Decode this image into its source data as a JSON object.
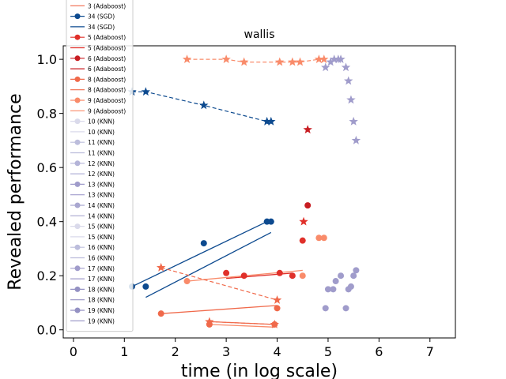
{
  "chart_data": {
    "type": "scatter",
    "title": "wallis",
    "xlabel": "time (in log scale)",
    "ylabel": "Revealed performance",
    "xlim": [
      -0.2,
      7.5
    ],
    "ylim": [
      -0.03,
      1.05
    ],
    "xticks": [
      0,
      1,
      2,
      3,
      4,
      5,
      6,
      7
    ],
    "yticks": [
      0.0,
      0.2,
      0.4,
      0.6,
      0.8,
      1.0
    ],
    "xtick_labels": [
      "0",
      "1",
      "2",
      "3",
      "4",
      "5",
      "6",
      "7"
    ],
    "ytick_labels": [
      "0.0",
      "0.2",
      "0.4",
      "0.6",
      "0.8",
      "1.0"
    ],
    "legend_position": "upper-left",
    "legend": [
      {
        "label": "3 (Adaboost)",
        "kind": "marker",
        "color": "#f0694a"
      },
      {
        "label": "3 (Adaboost)",
        "kind": "line",
        "color": "#f0694a"
      },
      {
        "label": "34 (SGD)",
        "kind": "marker",
        "color": "#0d4a8f"
      },
      {
        "label": "34 (SGD)",
        "kind": "line",
        "color": "#0d4a8f"
      },
      {
        "label": "5 (Adaboost)",
        "kind": "marker",
        "color": "#e0302a"
      },
      {
        "label": "5 (Adaboost)",
        "kind": "line",
        "color": "#e0302a"
      },
      {
        "label": "6 (Adaboost)",
        "kind": "marker",
        "color": "#c81d22"
      },
      {
        "label": "6 (Adaboost)",
        "kind": "line",
        "color": "#c81d22"
      },
      {
        "label": "8 (Adaboost)",
        "kind": "marker",
        "color": "#f0694a"
      },
      {
        "label": "8 (Adaboost)",
        "kind": "line",
        "color": "#f0694a"
      },
      {
        "label": "9 (Adaboost)",
        "kind": "marker",
        "color": "#f98b6a"
      },
      {
        "label": "9 (Adaboost)",
        "kind": "line",
        "color": "#f98b6a"
      },
      {
        "label": "10 (KNN)",
        "kind": "marker",
        "color": "#dadaeb"
      },
      {
        "label": "10 (KNN)",
        "kind": "line",
        "color": "#dadaeb"
      },
      {
        "label": "11 (KNN)",
        "kind": "marker",
        "color": "#bcbddc"
      },
      {
        "label": "11 (KNN)",
        "kind": "line",
        "color": "#bcbddc"
      },
      {
        "label": "12 (KNN)",
        "kind": "marker",
        "color": "#b4b4d8"
      },
      {
        "label": "12 (KNN)",
        "kind": "line",
        "color": "#b4b4d8"
      },
      {
        "label": "13 (KNN)",
        "kind": "marker",
        "color": "#a09ccb"
      },
      {
        "label": "13 (KNN)",
        "kind": "line",
        "color": "#a09ccb"
      },
      {
        "label": "14 (KNN)",
        "kind": "marker",
        "color": "#a9a7d0"
      },
      {
        "label": "14 (KNN)",
        "kind": "line",
        "color": "#a9a7d0"
      },
      {
        "label": "15 (KNN)",
        "kind": "marker",
        "color": "#dadaeb"
      },
      {
        "label": "15 (KNN)",
        "kind": "line",
        "color": "#dadaeb"
      },
      {
        "label": "16 (KNN)",
        "kind": "marker",
        "color": "#bcbddc"
      },
      {
        "label": "16 (KNN)",
        "kind": "line",
        "color": "#bcbddc"
      },
      {
        "label": "17 (KNN)",
        "kind": "marker",
        "color": "#a09ccb"
      },
      {
        "label": "17 (KNN)",
        "kind": "line",
        "color": "#a09ccb"
      },
      {
        "label": "18 (KNN)",
        "kind": "marker",
        "color": "#9491c3"
      },
      {
        "label": "18 (KNN)",
        "kind": "line",
        "color": "#9491c3"
      },
      {
        "label": "19 (KNN)",
        "kind": "marker",
        "color": "#9491c3"
      },
      {
        "label": "19 (KNN)",
        "kind": "line",
        "color": "#9491c3"
      }
    ],
    "star_series": [
      {
        "name": "34 (SGD)",
        "color": "#0d4a8f",
        "dashed": true,
        "points": [
          [
            1.15,
            0.88
          ],
          [
            1.42,
            0.88
          ],
          [
            2.56,
            0.83
          ],
          [
            3.8,
            0.77
          ],
          [
            3.88,
            0.77
          ]
        ]
      },
      {
        "name": "9 (Adaboost)",
        "color": "#f98b6a",
        "dashed": true,
        "points": [
          [
            2.23,
            1.0
          ],
          [
            3.0,
            1.0
          ],
          [
            3.35,
            0.99
          ],
          [
            4.05,
            0.99
          ],
          [
            4.3,
            0.99
          ],
          [
            4.45,
            0.99
          ],
          [
            4.82,
            1.0
          ],
          [
            4.92,
            1.0
          ]
        ]
      },
      {
        "name": "6 (Adaboost)",
        "color": "#c81d22",
        "dashed": false,
        "points": [
          [
            4.6,
            0.74
          ]
        ]
      },
      {
        "name": "5 (Adaboost)",
        "color": "#e0302a",
        "dashed": false,
        "points": [
          [
            4.52,
            0.4
          ]
        ]
      },
      {
        "name": "3 (Adaboost)",
        "color": "#f0694a",
        "dashed": true,
        "points": [
          [
            1.72,
            0.23
          ],
          [
            4.0,
            0.11
          ]
        ]
      },
      {
        "name": "8 (Adaboost)",
        "color": "#f0694a",
        "dashed": true,
        "points": [
          [
            2.67,
            0.03
          ],
          [
            3.95,
            0.02
          ]
        ]
      },
      {
        "name": "KNN",
        "color": "#a09ccb",
        "dashed": false,
        "points": [
          [
            4.95,
            0.97
          ],
          [
            5.05,
            0.99
          ],
          [
            5.12,
            1.0
          ],
          [
            5.2,
            1.0
          ],
          [
            5.25,
            1.0
          ],
          [
            5.35,
            0.97
          ],
          [
            5.4,
            0.92
          ],
          [
            5.45,
            0.85
          ],
          [
            5.5,
            0.77
          ],
          [
            5.55,
            0.7
          ]
        ]
      }
    ],
    "dot_series": [
      {
        "name": "34 (SGD)",
        "color": "#0d4a8f",
        "points": [
          [
            1.15,
            0.16
          ],
          [
            1.42,
            0.16
          ],
          [
            2.56,
            0.32
          ],
          [
            3.8,
            0.4
          ],
          [
            3.88,
            0.4
          ]
        ]
      },
      {
        "name": "9 (Adaboost)",
        "color": "#f98b6a",
        "points": [
          [
            2.23,
            0.18
          ],
          [
            4.5,
            0.2
          ],
          [
            4.82,
            0.34
          ],
          [
            4.92,
            0.34
          ]
        ]
      },
      {
        "name": "5 (Adaboost)",
        "color": "#e0302a",
        "points": [
          [
            3.0,
            0.21
          ],
          [
            3.35,
            0.2
          ],
          [
            4.05,
            0.21
          ],
          [
            4.3,
            0.2
          ],
          [
            4.5,
            0.33
          ]
        ]
      },
      {
        "name": "6 (Adaboost)",
        "color": "#c81d22",
        "points": [
          [
            4.6,
            0.46
          ]
        ]
      },
      {
        "name": "3 (Adaboost)",
        "color": "#f0694a",
        "points": [
          [
            1.72,
            0.06
          ],
          [
            4.0,
            0.08
          ]
        ]
      },
      {
        "name": "8 (Adaboost)",
        "color": "#f0694a",
        "points": [
          [
            2.67,
            0.02
          ],
          [
            3.95,
            0.02
          ]
        ]
      },
      {
        "name": "KNN",
        "color": "#a09ccb",
        "points": [
          [
            4.95,
            0.08
          ],
          [
            5.0,
            0.15
          ],
          [
            5.1,
            0.15
          ],
          [
            5.15,
            0.18
          ],
          [
            5.25,
            0.2
          ],
          [
            5.35,
            0.08
          ],
          [
            5.4,
            0.15
          ],
          [
            5.45,
            0.16
          ],
          [
            5.5,
            0.2
          ],
          [
            5.55,
            0.22
          ]
        ]
      }
    ],
    "solid_lines": [
      {
        "name": "34 (SGD)",
        "color": "#0d4a8f",
        "points": [
          [
            1.42,
            0.12
          ],
          [
            3.88,
            0.36
          ]
        ]
      },
      {
        "name": "34 (SGD)",
        "color": "#0d4a8f",
        "points": [
          [
            1.15,
            0.16
          ],
          [
            3.8,
            0.4
          ]
        ]
      },
      {
        "name": "5 (Adaboost)",
        "color": "#e0302a",
        "points": [
          [
            3.0,
            0.19
          ],
          [
            4.3,
            0.21
          ]
        ]
      },
      {
        "name": "9 (Adaboost)",
        "color": "#f98b6a",
        "points": [
          [
            2.23,
            0.18
          ],
          [
            4.5,
            0.22
          ]
        ]
      },
      {
        "name": "3 (Adaboost)",
        "color": "#f0694a",
        "points": [
          [
            1.72,
            0.06
          ],
          [
            4.0,
            0.09
          ]
        ]
      },
      {
        "name": "8 (Adaboost)",
        "color": "#f0694a",
        "points": [
          [
            2.67,
            0.03
          ],
          [
            3.95,
            0.02
          ]
        ]
      },
      {
        "name": "8 (Adaboost)",
        "color": "#f98b6a",
        "points": [
          [
            2.67,
            0.02
          ],
          [
            3.95,
            0.01
          ]
        ]
      }
    ]
  }
}
